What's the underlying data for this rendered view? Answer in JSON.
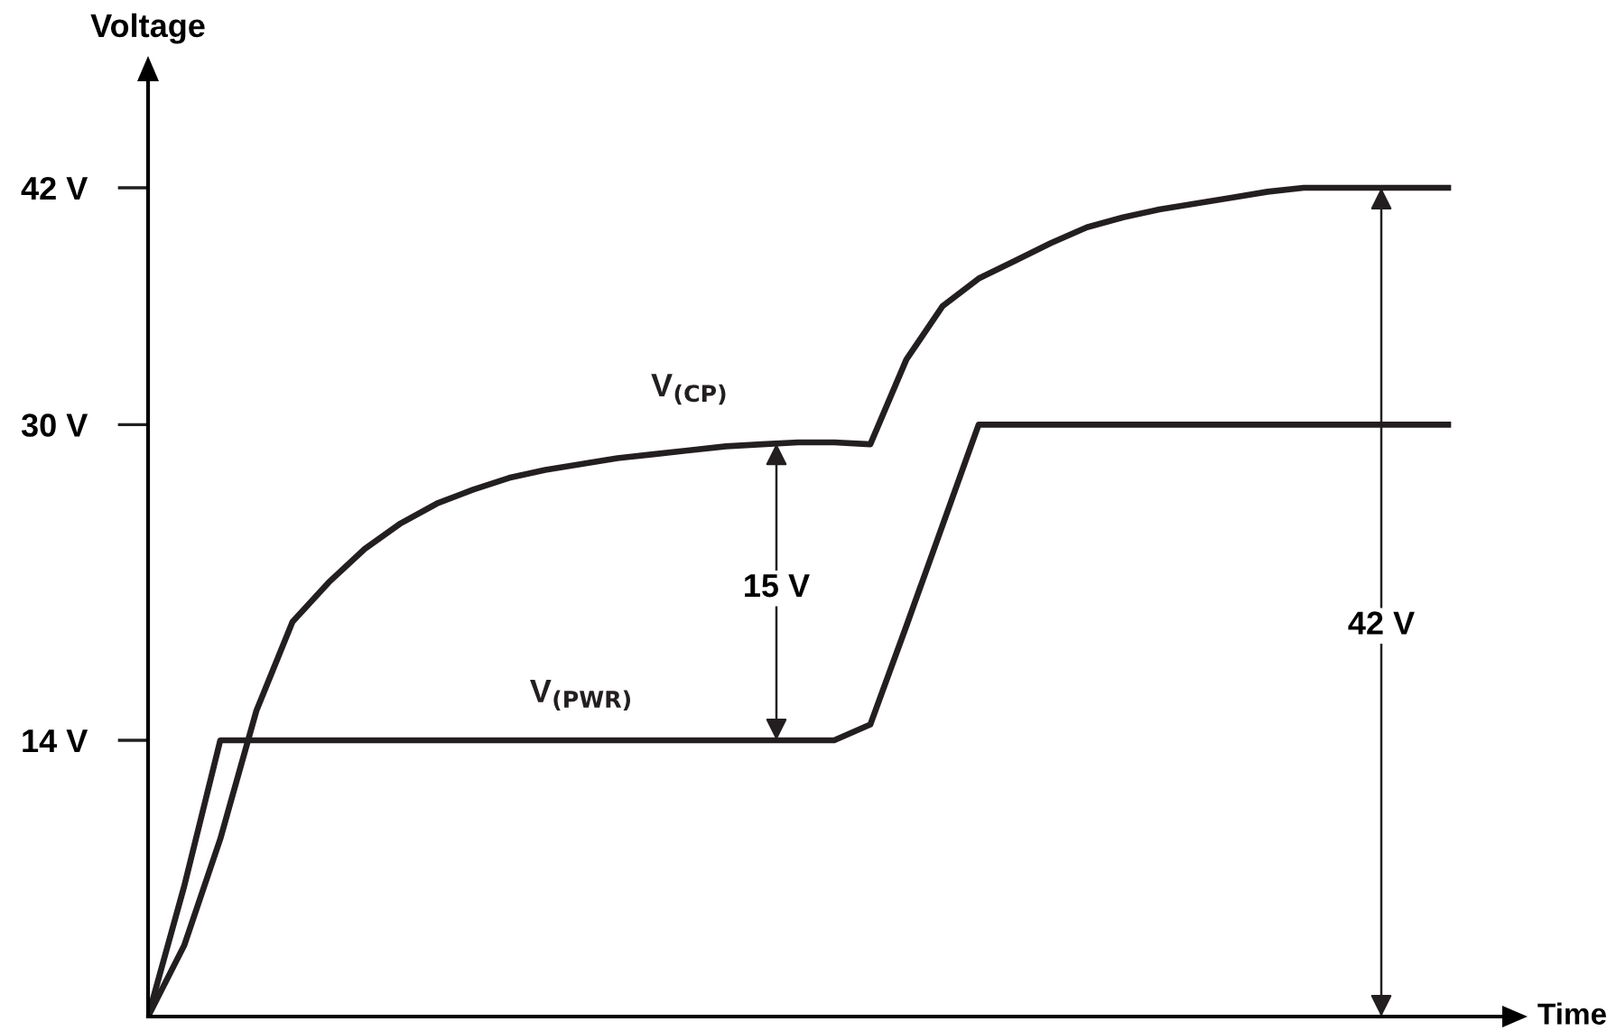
{
  "chart_data": {
    "type": "line",
    "xlabel": "Time",
    "ylabel": "Voltage",
    "categories": [
      null,
      null,
      null,
      null,
      null,
      null,
      null,
      null,
      null,
      null,
      null,
      null,
      null,
      null,
      null,
      null,
      null,
      null,
      null,
      null,
      null,
      null,
      null,
      null,
      null,
      null,
      null,
      null,
      null,
      null,
      null,
      null,
      null,
      null,
      null,
      null,
      null
    ],
    "series": [
      {
        "name": "V$_{(CP)}$",
        "color": "#231f20",
        "values": [
          0,
          3.6,
          9,
          15.5,
          20,
          22,
          23.7,
          25,
          26,
          26.7,
          27.3,
          27.7,
          28,
          28.3,
          28.5,
          28.7,
          28.9,
          29,
          29.1,
          29.1,
          29,
          33.3,
          36,
          37.4,
          38.3,
          39.2,
          40,
          40.5,
          40.9,
          41.2,
          41.5,
          41.8,
          42,
          42,
          42,
          42,
          42
        ]
      },
      {
        "name": "V$_{(PWR)}$",
        "color": "#231f20",
        "values": [
          0,
          6.6,
          14,
          14,
          14,
          14,
          14,
          14,
          14,
          14,
          14,
          14,
          14,
          14,
          14,
          14,
          14,
          14,
          14,
          14,
          14.8,
          19.8,
          24.9,
          30,
          30,
          30,
          30,
          30,
          30,
          30,
          30,
          30,
          30,
          30,
          30,
          30,
          30
        ]
      }
    ],
    "ylim": [
      0,
      47.4
    ],
    "yticks": [
      {
        "value": 14,
        "label": "14 V"
      },
      {
        "value": 30,
        "label": "30 V"
      },
      {
        "value": 42,
        "label": "42 V"
      }
    ],
    "annotations": [
      {
        "text": "15 V",
        "y": 21.7
      },
      {
        "text": "42 V",
        "y": 19.8
      }
    ],
    "grid": false,
    "legend": false,
    "marker": "none",
    "line_style": "solid"
  }
}
